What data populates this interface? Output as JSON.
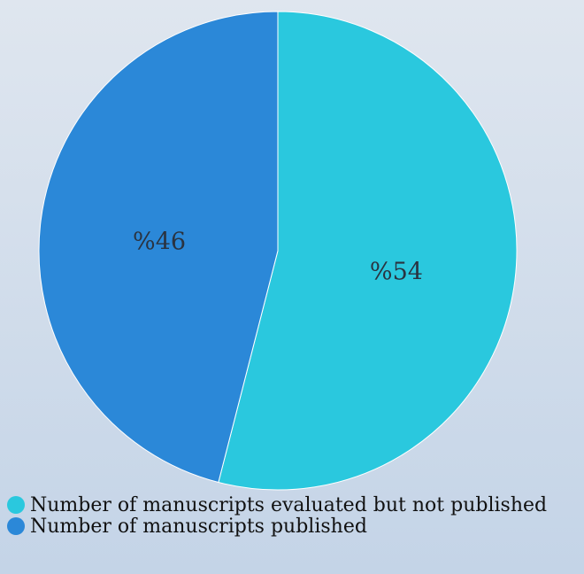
{
  "chart_data": {
    "type": "pie",
    "categories": [
      "Number of manuscripts evaluated but not published",
      "Number of manuscripts published"
    ],
    "values": [
      54,
      46
    ],
    "value_labels": [
      "%54",
      "%46"
    ],
    "colors": [
      "#2ac8de",
      "#2b88d8"
    ]
  }
}
